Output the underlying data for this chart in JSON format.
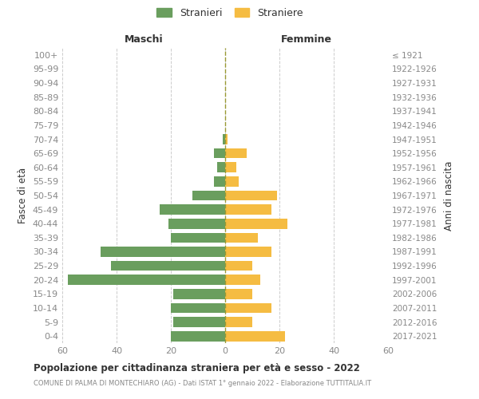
{
  "age_groups": [
    "100+",
    "95-99",
    "90-94",
    "85-89",
    "80-84",
    "75-79",
    "70-74",
    "65-69",
    "60-64",
    "55-59",
    "50-54",
    "45-49",
    "40-44",
    "35-39",
    "30-34",
    "25-29",
    "20-24",
    "15-19",
    "10-14",
    "5-9",
    "0-4"
  ],
  "birth_years": [
    "≤ 1921",
    "1922-1926",
    "1927-1931",
    "1932-1936",
    "1937-1941",
    "1942-1946",
    "1947-1951",
    "1952-1956",
    "1957-1961",
    "1962-1966",
    "1967-1971",
    "1972-1976",
    "1977-1981",
    "1982-1986",
    "1987-1991",
    "1992-1996",
    "1997-2001",
    "2002-2006",
    "2007-2011",
    "2012-2016",
    "2017-2021"
  ],
  "males": [
    0,
    0,
    0,
    0,
    0,
    0,
    1,
    4,
    3,
    4,
    12,
    24,
    21,
    20,
    46,
    42,
    58,
    19,
    20,
    19,
    20
  ],
  "females": [
    0,
    0,
    0,
    0,
    0,
    0,
    1,
    8,
    4,
    5,
    19,
    17,
    23,
    12,
    17,
    10,
    13,
    10,
    17,
    10,
    22
  ],
  "male_color": "#6a9e5e",
  "female_color": "#f5bc42",
  "title": "Popolazione per cittadinanza straniera per età e sesso - 2022",
  "subtitle": "COMUNE DI PALMA DI MONTECHIARO (AG) - Dati ISTAT 1° gennaio 2022 - Elaborazione TUTTITALIA.IT",
  "xlabel_left": "Maschi",
  "xlabel_right": "Femmine",
  "ylabel_left": "Fasce di età",
  "ylabel_right": "Anni di nascita",
  "legend_male": "Stranieri",
  "legend_female": "Straniere",
  "xlim": 60,
  "background_color": "#ffffff",
  "grid_color": "#cccccc",
  "tick_color": "#888888",
  "text_color": "#333333",
  "dashed_line_color": "#999933"
}
